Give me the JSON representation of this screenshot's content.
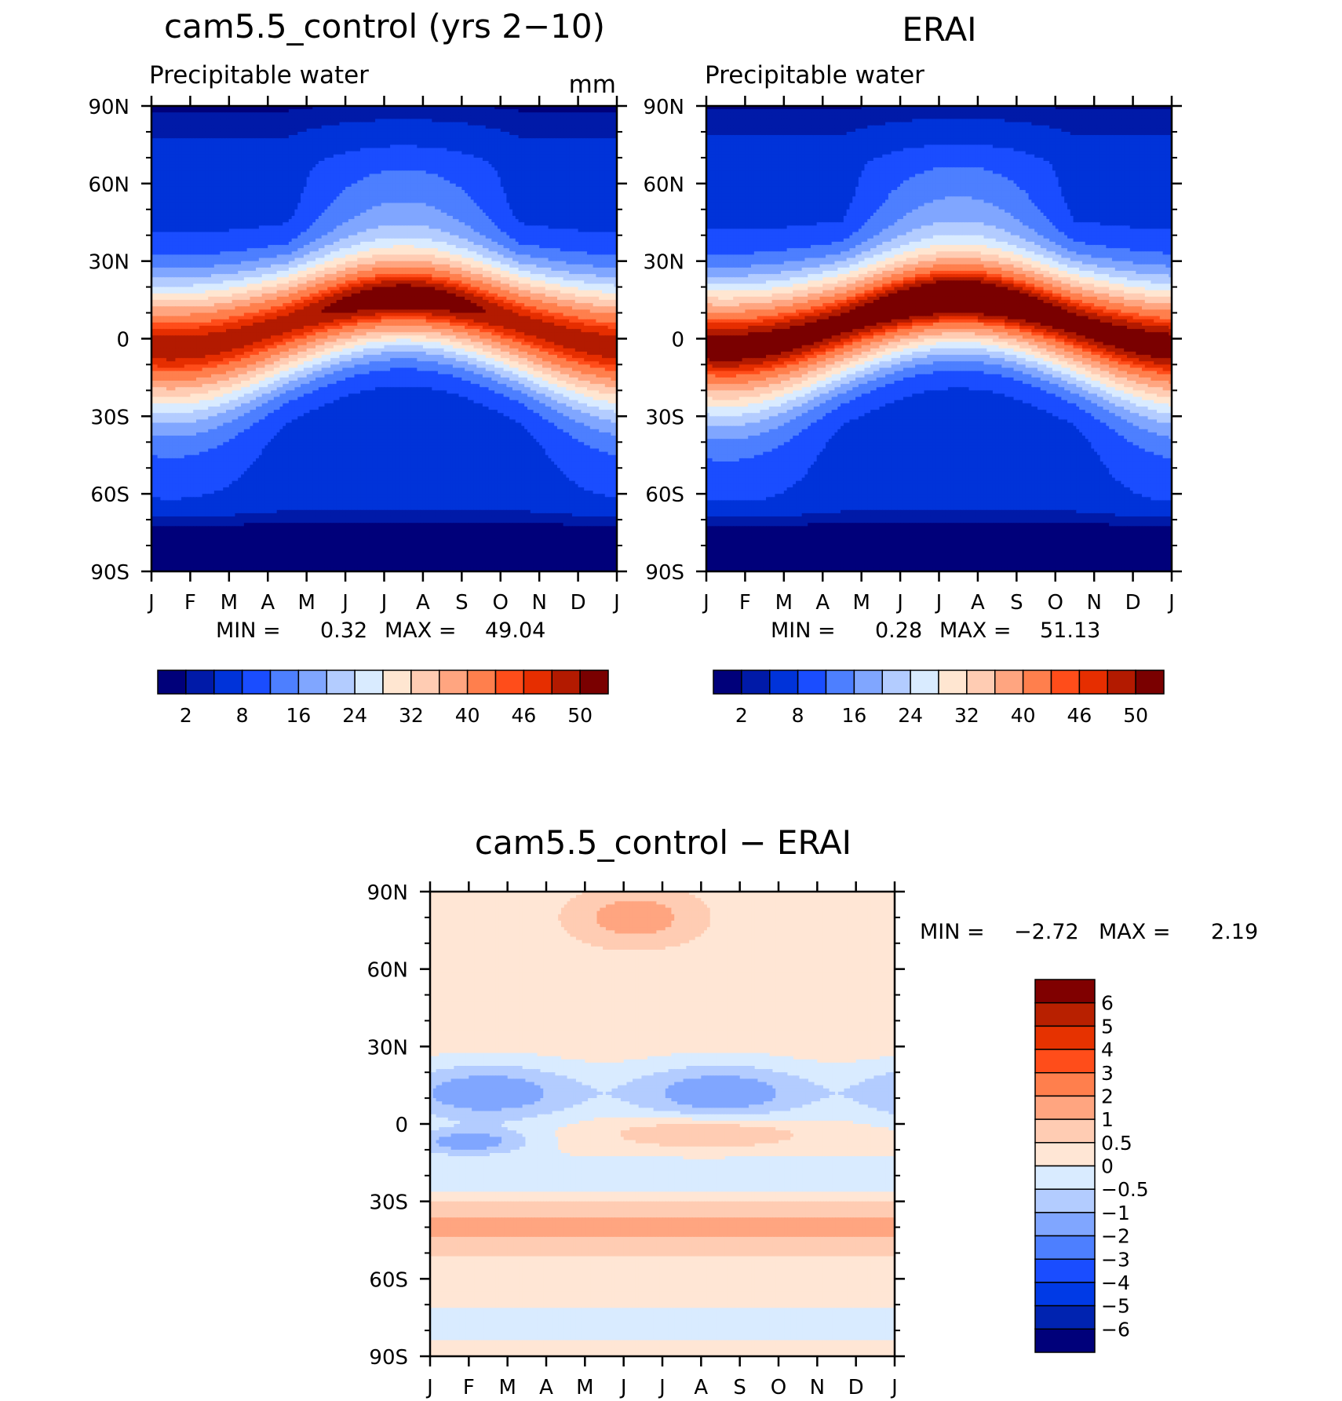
{
  "colors": {
    "pw": [
      "#00007a",
      "#001aa8",
      "#0033d9",
      "#1a4dff",
      "#4d7fff",
      "#80a6ff",
      "#b3ccff",
      "#d9ebff",
      "#ffe6d1",
      "#ffccb3",
      "#ffa580",
      "#ff7f4d",
      "#ff4d1a",
      "#e62e00",
      "#b31a00",
      "#7a0000"
    ],
    "diff": [
      "#00007a",
      "#0023b0",
      "#003ae6",
      "#1a4dff",
      "#4d7fff",
      "#80a6ff",
      "#b3ccff",
      "#d9ebff",
      "#ffe6d5",
      "#ffccb3",
      "#ffa580",
      "#ff7f4d",
      "#ff4d1a",
      "#e63200",
      "#b82000",
      "#800000"
    ]
  },
  "chart_data": [
    {
      "type": "heatmap",
      "title": "cam5.5_control (yrs 2−10)",
      "subtitle": "Precipitable water",
      "units": "mm",
      "x_ticks": [
        "J",
        "F",
        "M",
        "A",
        "M",
        "J",
        "J",
        "A",
        "S",
        "O",
        "N",
        "D",
        "J"
      ],
      "y_ticks": [
        "90N",
        "60N",
        "30N",
        "0",
        "30S",
        "60S",
        "90S"
      ],
      "y_range": [
        -90,
        90
      ],
      "stats": {
        "min_label": "MIN =",
        "min": "0.32",
        "max_label": "MAX =",
        "max": "49.04"
      },
      "levels": [
        2,
        4,
        8,
        12,
        16,
        20,
        24,
        28,
        32,
        36,
        40,
        44,
        46,
        48,
        50
      ],
      "colorbar_labels": [
        "2",
        "8",
        "16",
        "24",
        "32",
        "40",
        "46",
        "50"
      ]
    },
    {
      "type": "heatmap",
      "title": "ERAI",
      "subtitle": "Precipitable water",
      "x_ticks": [
        "J",
        "F",
        "M",
        "A",
        "M",
        "J",
        "J",
        "A",
        "S",
        "O",
        "N",
        "D",
        "J"
      ],
      "y_ticks": [
        "90N",
        "60N",
        "30N",
        "0",
        "30S",
        "60S",
        "90S"
      ],
      "y_range": [
        -90,
        90
      ],
      "stats": {
        "min_label": "MIN =",
        "min": "0.28",
        "max_label": "MAX =",
        "max": "51.13"
      },
      "levels": [
        2,
        4,
        8,
        12,
        16,
        20,
        24,
        28,
        32,
        36,
        40,
        44,
        46,
        48,
        50
      ],
      "colorbar_labels": [
        "2",
        "8",
        "16",
        "24",
        "32",
        "40",
        "46",
        "50"
      ]
    },
    {
      "type": "heatmap",
      "title": "cam5.5_control − ERAI",
      "x_ticks": [
        "J",
        "F",
        "M",
        "A",
        "M",
        "J",
        "J",
        "A",
        "S",
        "O",
        "N",
        "D",
        "J"
      ],
      "y_ticks": [
        "90N",
        "60N",
        "30N",
        "0",
        "30S",
        "60S",
        "90S"
      ],
      "y_range": [
        -90,
        90
      ],
      "stats": {
        "min_label": "MIN =",
        "min": "−2.72",
        "max_label": "MAX =",
        "max": "2.19"
      },
      "levels": [
        -6,
        -5,
        -4,
        -3,
        -2,
        -1,
        -0.5,
        0,
        0.5,
        1,
        2,
        3,
        4,
        5,
        6
      ],
      "colorbar_labels": [
        "6",
        "5",
        "4",
        "3",
        "2",
        "1",
        "0.5",
        "0",
        "−0.5",
        "−1",
        "−2",
        "−3",
        "−4",
        "−5",
        "−6"
      ]
    }
  ]
}
